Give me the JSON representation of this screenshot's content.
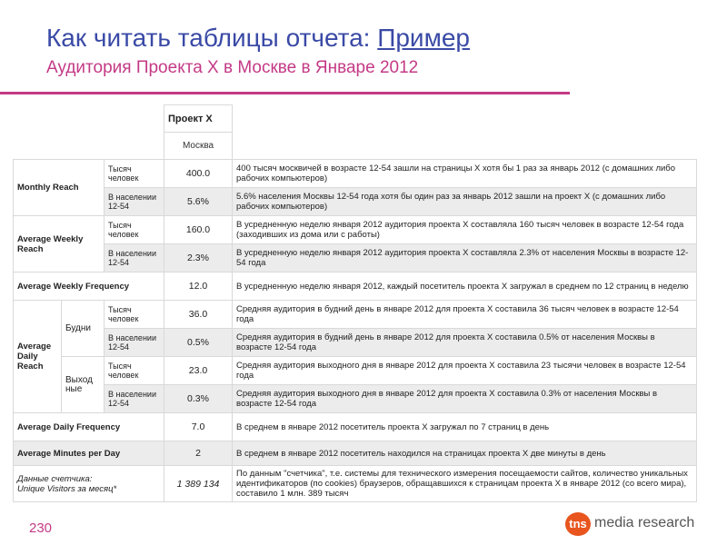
{
  "header": {
    "title_main": "Как читать таблицы отчета: ",
    "title_link": "Пример",
    "subtitle": "Аудитория Проекта X в Москве в Январе 2012"
  },
  "table": {
    "project": "Проект X",
    "city": "Москва",
    "monthly_reach": {
      "label": "Monthly Reach",
      "rows": [
        {
          "unit": "Тысяч человек",
          "value": "400.0",
          "desc": "400 тысяч москвичей в возрасте 12-54 зашли на страницы X хотя бы 1 раз за январь 2012 (с домашних либо рабочих компьютеров)"
        },
        {
          "unit": "В населении 12-54",
          "value": "5.6%",
          "desc": "5.6% населения Москвы 12-54 года хотя бы один раз за январь 2012 зашли на проект X (с домашних либо рабочих компьютеров)"
        }
      ]
    },
    "weekly_reach": {
      "label": "Average Weekly Reach",
      "rows": [
        {
          "unit": "Тысяч человек",
          "value": "160.0",
          "desc": "В усредненную неделю января 2012 аудитория проекта X составляла 160 тысяч человек в возрасте 12-54 года (заходивших из дома или с работы)"
        },
        {
          "unit": "В населении 12-54",
          "value": "2.3%",
          "desc": "В усредненную неделю января 2012 аудитория проекта X составляла 2.3% от населения Москвы в возрасте 12-54 года"
        }
      ]
    },
    "weekly_frequency": {
      "label": "Average Weekly Frequency",
      "value": "12.0",
      "desc": "В усредненную неделю января 2012, каждый посетитель проекта X загружал в среднем по 12 страниц в неделю"
    },
    "daily_reach": {
      "label": "Average Daily Reach",
      "weekdays": {
        "label": "Будни",
        "rows": [
          {
            "unit": "Тысяч человек",
            "value": "36.0",
            "desc": "Средняя аудитория в будний день в январе 2012 для проекта X составила 36 тысяч человек в возрасте 12-54 года"
          },
          {
            "unit": "В населении 12-54",
            "value": "0.5%",
            "desc": "Средняя аудитория в будний день в январе 2012 для проекта X составила 0.5% от населения Москвы в возрасте 12-54 года"
          }
        ]
      },
      "weekend": {
        "label": "Выход ные",
        "rows": [
          {
            "unit": "Тысяч человек",
            "value": "23.0",
            "desc": "Средняя аудитория выходного дня в январе 2012 для проекта X составила 23 тысячи человек в возрасте 12-54 года"
          },
          {
            "unit": "В населении 12-54",
            "value": "0.3%",
            "desc": "Средняя аудитория выходного дня в январе 2012 для проекта X составила 0.3% от населения Москвы в возрасте 12-54 года"
          }
        ]
      }
    },
    "daily_frequency": {
      "label": "Average Daily Frequency",
      "value": "7.0",
      "desc": "В среднем в январе 2012 посетитель проекта X загружал по 7 страниц в день"
    },
    "minutes_per_day": {
      "label": "Average Minutes per Day",
      "value": "2",
      "desc": "В среднем в январе 2012 посетитель находился на страницах проекта X две минуты в день"
    },
    "counter": {
      "label_line1": "Данные счетчика:",
      "label_line2": "Unique Visitors за месяц*",
      "value": "1 389 134",
      "desc": "По данным \"счетчика\", т.е. системы для технического измерения посещаемости сайтов, количество уникальных идентификаторов (по cookies) браузеров, обращавшихся к страницам проекта X в январе 2012 (со всего мира), составило 1 млн. 389 тысяч"
    }
  },
  "footer": {
    "page_number": "230",
    "logo_mark": "tns",
    "logo_text": "media research"
  },
  "colors": {
    "title": "#3a4aa6",
    "accent": "#c43a86",
    "logo": "#e8551e",
    "row_shade": "#ececec"
  }
}
